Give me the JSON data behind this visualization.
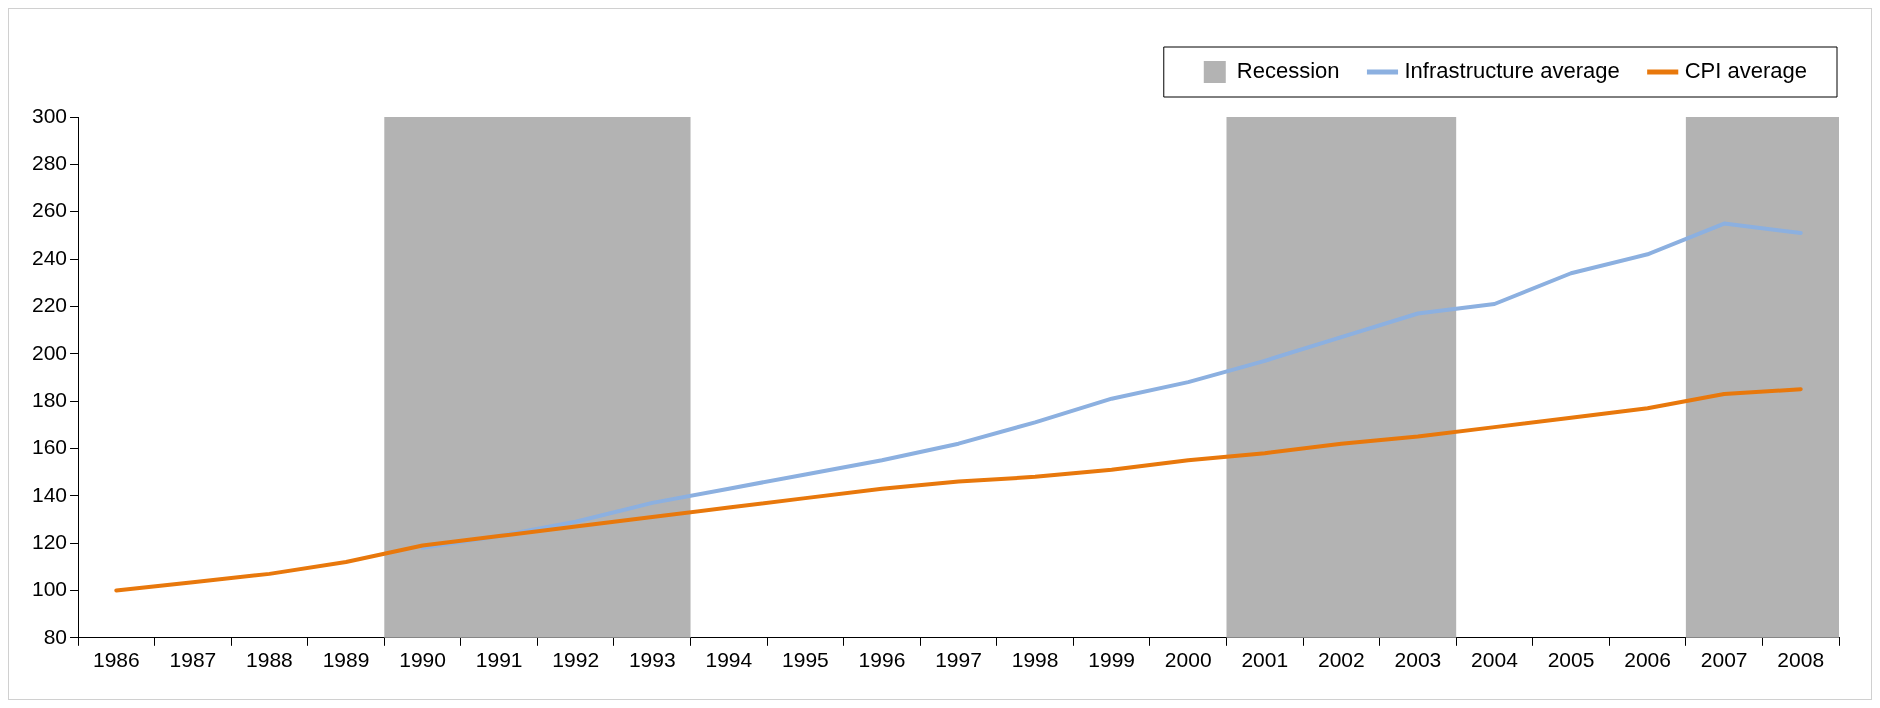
{
  "chart_data": {
    "type": "line",
    "categories": [
      "1986",
      "1987",
      "1988",
      "1989",
      "1990",
      "1991",
      "1992",
      "1993",
      "1994",
      "1995",
      "1996",
      "1997",
      "1998",
      "1999",
      "2000",
      "2001",
      "2002",
      "2003",
      "2004",
      "2005",
      "2006",
      "2007",
      "2008"
    ],
    "series": [
      {
        "name": "Infrastructure average",
        "color": "#8cb0e0",
        "values": [
          null,
          null,
          null,
          null,
          118,
          123,
          129,
          137,
          143,
          149,
          155,
          162,
          171,
          181,
          188,
          197,
          207,
          217,
          221,
          234,
          242,
          255,
          251
        ]
      },
      {
        "name": "CPI average",
        "color": "#e8780c",
        "values": [
          100,
          103.5,
          107,
          112,
          119,
          123,
          127,
          131,
          135,
          139,
          143,
          146,
          148,
          151,
          155,
          158,
          162,
          165,
          169,
          173,
          177,
          183,
          185
        ]
      }
    ],
    "bands": [
      {
        "axis": "x",
        "from": "1990",
        "to": "1993",
        "label": "Recession",
        "color": "#b3b3b3"
      },
      {
        "axis": "x",
        "from": "2001",
        "to": "2003",
        "color": "#b3b3b3"
      },
      {
        "axis": "x",
        "from": "2007",
        "to": "2008",
        "color": "#b3b3b3"
      }
    ],
    "ylim": [
      80,
      300
    ],
    "yticks": [
      80,
      100,
      120,
      140,
      160,
      180,
      200,
      220,
      240,
      260,
      280,
      300
    ],
    "grid": false,
    "legend": "top right",
    "marker": "none",
    "line_style": "solid"
  }
}
